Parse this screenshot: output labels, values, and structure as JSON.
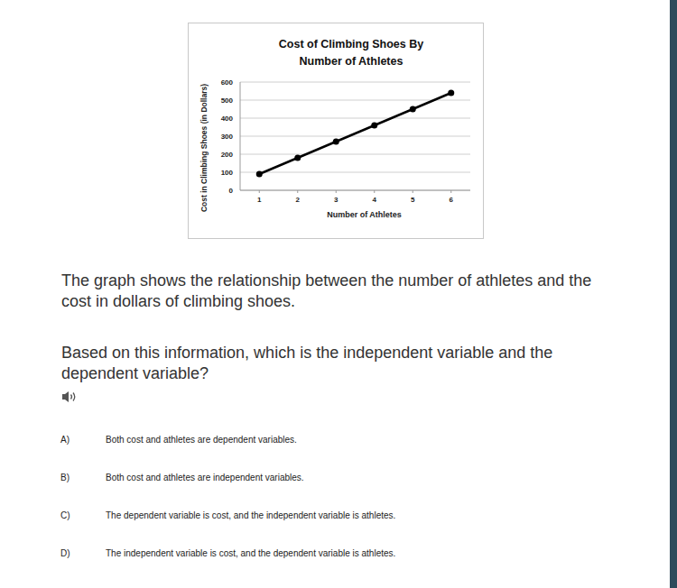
{
  "chart_data": {
    "type": "line",
    "title": "Cost of Climbing Shoes By Number of Athletes",
    "x_label": "Number of Athletes",
    "y_label": "Cost in Climbing Shoes (in Dollars)",
    "x": [
      1,
      2,
      3,
      4,
      5,
      6
    ],
    "values": [
      90,
      180,
      270,
      360,
      450,
      540
    ],
    "color": "#000000",
    "marker": "circle",
    "xlim": [
      0.5,
      6.5
    ],
    "xticks": [
      1,
      2,
      3,
      4,
      5,
      6
    ],
    "ylim": [
      0,
      600
    ],
    "yticks": [
      0,
      100,
      200,
      300,
      400,
      500,
      600
    ],
    "grid": true
  },
  "question": {
    "paragraphs": [
      "The graph shows the relationship between the number of athletes and the cost in dollars of climbing shoes.",
      "Based on this information, which is the independent variable and the dependent variable?"
    ]
  },
  "options": [
    {
      "letter": "A)",
      "text": "Both cost and athletes are dependent variables."
    },
    {
      "letter": "B)",
      "text": "Both cost and athletes are independent variables."
    },
    {
      "letter": "C)",
      "text": "The dependent variable is cost, and the independent variable is athletes."
    },
    {
      "letter": "D)",
      "text": "The independent variable is cost, and the dependent variable is athletes."
    }
  ]
}
